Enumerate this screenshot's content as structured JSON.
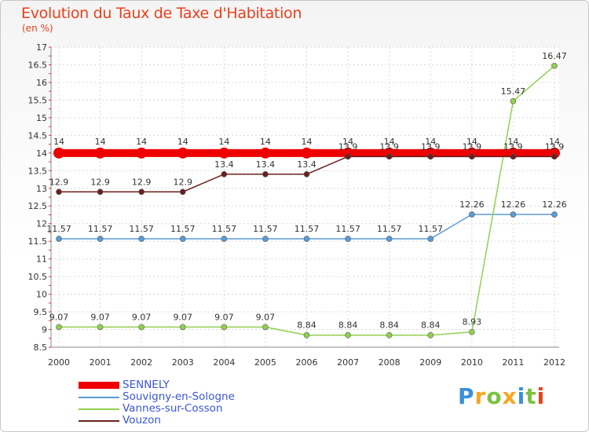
{
  "title": "Evolution du Taux de Taxe d'Habitation",
  "subtitle": "(en %)",
  "chart_data": {
    "type": "line",
    "title": "Evolution du Taux de Taxe d'Habitation",
    "ylabel": "(en %)",
    "xlabel": "",
    "categories": [
      "2000",
      "2001",
      "2002",
      "2003",
      "2004",
      "2005",
      "2006",
      "2007",
      "2008",
      "2009",
      "2010",
      "2011",
      "2012"
    ],
    "y_ticks": [
      8.5,
      9,
      9.5,
      10,
      10.5,
      11,
      11.5,
      12,
      12.5,
      13,
      13.5,
      14,
      14.5,
      15,
      15.5,
      16,
      16.5,
      17
    ],
    "y_tick_labels": [
      "8.5",
      "9",
      "9.5",
      "10",
      "10.5",
      "11",
      "11.5",
      "12",
      "12.5",
      "13",
      "13.5",
      "14",
      "14.5",
      "15",
      "15.5",
      "16",
      "16.5",
      "17"
    ],
    "ylim": [
      8.5,
      17
    ],
    "grid": true,
    "series": [
      {
        "name": "SENNELY",
        "color": "#ee0000",
        "values": [
          14,
          14,
          14,
          14,
          14,
          14,
          14,
          14,
          14,
          14,
          14,
          14,
          14
        ],
        "labels": [
          "14",
          "14",
          "14",
          "14",
          "14",
          "14",
          "14",
          "14",
          "14",
          "14",
          "14",
          "14",
          "14"
        ]
      },
      {
        "name": "Souvigny-en-Sologne",
        "color": "#5b9bd5",
        "values": [
          11.57,
          11.57,
          11.57,
          11.57,
          11.57,
          11.57,
          11.57,
          11.57,
          11.57,
          11.57,
          12.26,
          12.26,
          12.26
        ],
        "labels": [
          "11.57",
          "11.57",
          "11.57",
          "11.57",
          "11.57",
          "11.57",
          "11.57",
          "11.57",
          "11.57",
          "11.57",
          "12.26",
          "12.26",
          "12.26"
        ]
      },
      {
        "name": "Vannes-sur-Cosson",
        "color": "#92d050",
        "values": [
          9.07,
          9.07,
          9.07,
          9.07,
          9.07,
          9.07,
          8.84,
          8.84,
          8.84,
          8.84,
          8.93,
          15.47,
          16.47
        ],
        "labels": [
          "9.07",
          "9.07",
          "9.07",
          "9.07",
          "9.07",
          "9.07",
          "8.84",
          "8.84",
          "8.84",
          "8.84",
          "8.93",
          "15.47",
          "16.47"
        ]
      },
      {
        "name": "Vouzon",
        "color": "#6b2020",
        "values": [
          12.9,
          12.9,
          12.9,
          12.9,
          13.4,
          13.4,
          13.4,
          13.9,
          13.9,
          13.9,
          13.9,
          13.9,
          13.9
        ],
        "labels": [
          "12.9",
          "12.9",
          "12.9",
          "12.9",
          "13.4",
          "13.4",
          "13.4",
          "13.9",
          "13.9",
          "13.9",
          "13.9",
          "13.9",
          "13.9"
        ]
      }
    ],
    "legend_position": "bottom-left"
  },
  "logo": {
    "letters": [
      "P",
      "r",
      "o",
      "x",
      "i",
      "t",
      "i"
    ],
    "colors": [
      "#3b8fd9",
      "#f5a623",
      "#7cc242",
      "#f5a623",
      "#3b8fd9",
      "#7cc242",
      "#e8401c"
    ]
  }
}
